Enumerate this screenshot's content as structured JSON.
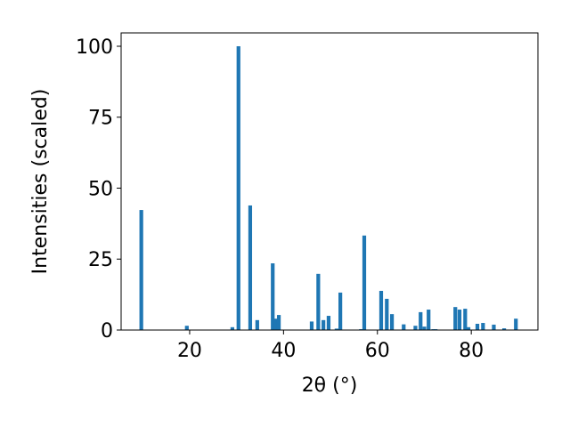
{
  "chart_data": {
    "type": "bar",
    "xlabel": "2θ (°)",
    "ylabel": "Intensities (scaled)",
    "color": "#1f77b4",
    "x": [
      9.7,
      19.4,
      29.1,
      30.4,
      32.9,
      34.4,
      37.7,
      38.4,
      39.0,
      46.0,
      47.4,
      48.5,
      49.6,
      51.3,
      52.1,
      56.5,
      57.2,
      60.8,
      62.0,
      63.1,
      65.6,
      68.1,
      69.2,
      70.0,
      70.9,
      71.9,
      72.4,
      76.6,
      77.5,
      78.7,
      79.4,
      81.3,
      82.5,
      84.8,
      87.0,
      89.5
    ],
    "values": [
      42.3,
      1.5,
      1,
      100,
      43.9,
      3.5,
      23.5,
      4,
      5.3,
      3,
      19.8,
      3.5,
      5,
      0.5,
      13.2,
      0.3,
      33.3,
      13.8,
      11,
      5.6,
      2,
      1.5,
      6.3,
      1.2,
      7.2,
      0.3,
      0.3,
      8.1,
      7.2,
      7.5,
      1,
      2.2,
      2.5,
      1.9,
      0.6,
      4
    ],
    "xlim": [
      5.4,
      94.2
    ],
    "ylim": [
      0,
      104.7
    ],
    "xticks": [
      20,
      40,
      60,
      80
    ],
    "yticks": [
      0,
      25,
      50,
      75,
      100
    ]
  }
}
